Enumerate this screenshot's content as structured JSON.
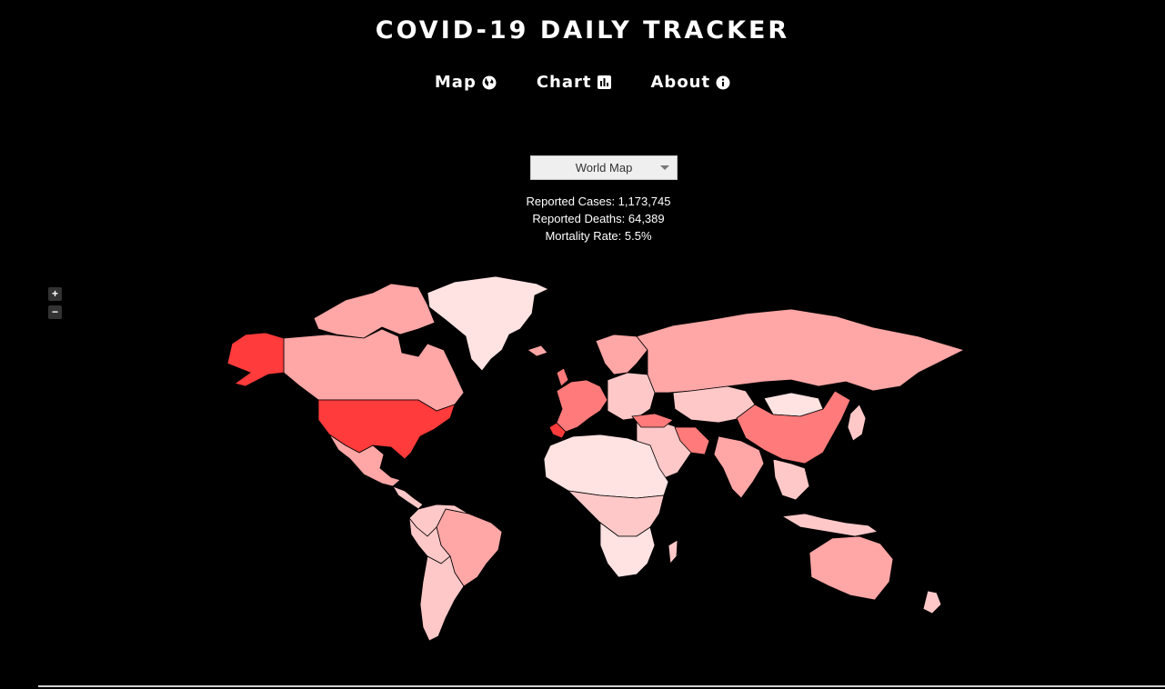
{
  "header": {
    "title": "COVID-19 DAILY TRACKER"
  },
  "nav": {
    "items": [
      {
        "label": "Map",
        "icon": "globe-icon"
      },
      {
        "label": "Chart",
        "icon": "bar-chart-icon"
      },
      {
        "label": "About",
        "icon": "info-icon"
      }
    ]
  },
  "selector": {
    "selected": "World Map"
  },
  "stats": {
    "cases": "Reported Cases: 1,173,745",
    "deaths": "Reported Deaths: 64,389",
    "mortality": "Mortality Rate: 5.5%"
  },
  "zoom": {
    "in_label": "+",
    "out_label": "−"
  },
  "colors": {
    "background": "#000000",
    "highest": "#ff3b3b",
    "high": "#ff7b7b",
    "medium": "#ffa6a6",
    "low": "#ffc8c8",
    "lowest": "#ffe2e2",
    "none": "#ffffff"
  }
}
